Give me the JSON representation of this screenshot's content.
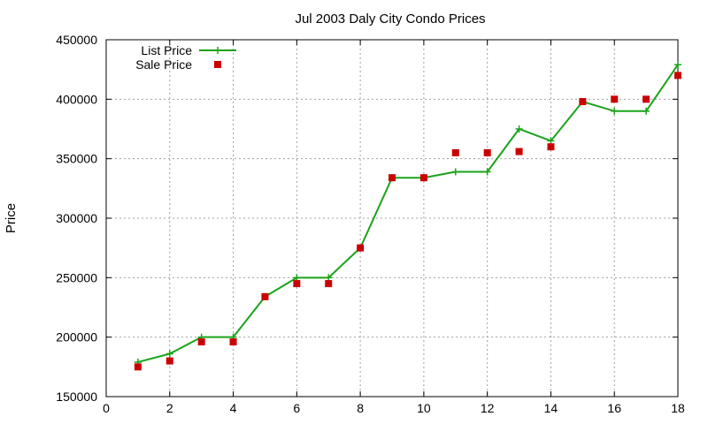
{
  "chart_data": {
    "type": "line",
    "title": "Jul 2003 Daly City Condo Prices",
    "xlabel": "",
    "ylabel": "Price",
    "xlim": [
      0,
      18
    ],
    "ylim": [
      150000,
      450000
    ],
    "x_ticks": [
      0,
      2,
      4,
      6,
      8,
      10,
      12,
      14,
      16,
      18
    ],
    "y_ticks": [
      150000,
      200000,
      250000,
      300000,
      350000,
      400000,
      450000
    ],
    "grid": true,
    "legend_position": "top-left",
    "series": [
      {
        "name": "List Price",
        "style": "line-plus",
        "color": "#1aa31a",
        "x": [
          1,
          2,
          3,
          4,
          5,
          6,
          7,
          8,
          9,
          10,
          11,
          12,
          13,
          14,
          15,
          16,
          17,
          18
        ],
        "y": [
          179000,
          186000,
          200000,
          200000,
          234000,
          250000,
          250000,
          275000,
          334000,
          334000,
          339000,
          339000,
          375000,
          365000,
          398000,
          390000,
          390000,
          429000
        ]
      },
      {
        "name": "Sale Price",
        "style": "square-points",
        "color": "#cc0000",
        "x": [
          1,
          2,
          3,
          4,
          5,
          6,
          7,
          8,
          9,
          10,
          11,
          12,
          13,
          14,
          15,
          16,
          17,
          18
        ],
        "y": [
          175000,
          180000,
          196000,
          196000,
          234000,
          245000,
          245000,
          275000,
          334000,
          334000,
          355000,
          355000,
          356000,
          360000,
          398000,
          400000,
          400000,
          420000
        ]
      }
    ]
  }
}
